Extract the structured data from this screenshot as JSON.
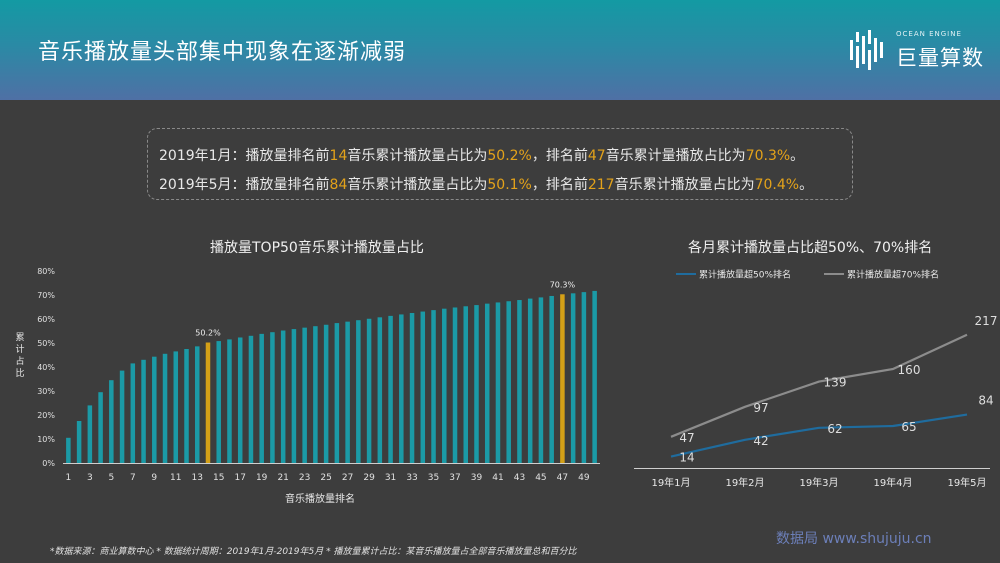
{
  "header": {
    "title": "音乐播放量头部集中现象在逐渐减弱"
  },
  "logo": {
    "text": "巨量算数",
    "subtext": "OCEAN ENGINE"
  },
  "summary": {
    "line1": {
      "a": "2019年1月：播放量排名前",
      "b": "14",
      "c": "音乐累计播放量占比为",
      "d": "50.2%",
      "e": "，排名前",
      "f": "47",
      "g": "音乐累计量播放占比为",
      "h": "70.3%",
      "i": "。"
    },
    "line2": {
      "a": "2019年5月：播放量排名前",
      "b": "84",
      "c": "音乐累计播放量占比为",
      "d": "50.1%",
      "e": "，排名前",
      "f": "217",
      "g": "音乐累计播放量占比为",
      "h": "70.4%",
      "i": "。"
    }
  },
  "colors": {
    "bar": "#1b9aa6",
    "highlight": "#d4a017",
    "line1": "#1f6c9e",
    "line2": "#8c8c8c",
    "axis": "#cfcfcf"
  },
  "chart_data": [
    {
      "type": "bar",
      "title": "播放量TOP50音乐累计播放量占比",
      "xlabel": "音乐播放量排名",
      "ylabel": "累计占比",
      "ylim": [
        0,
        80
      ],
      "yticks": [
        "0%",
        "10%",
        "20%",
        "30%",
        "40%",
        "50%",
        "60%",
        "70%",
        "80%"
      ],
      "xticks": [
        "1",
        "3",
        "5",
        "7",
        "9",
        "11",
        "13",
        "15",
        "17",
        "19",
        "21",
        "23",
        "25",
        "27",
        "29",
        "31",
        "33",
        "35",
        "37",
        "39",
        "41",
        "43",
        "45",
        "47",
        "49"
      ],
      "categories": [
        1,
        2,
        3,
        4,
        5,
        6,
        7,
        8,
        9,
        10,
        11,
        12,
        13,
        14,
        15,
        16,
        17,
        18,
        19,
        20,
        21,
        22,
        23,
        24,
        25,
        26,
        27,
        28,
        29,
        30,
        31,
        32,
        33,
        34,
        35,
        36,
        37,
        38,
        39,
        40,
        41,
        42,
        43,
        44,
        45,
        46,
        47,
        48,
        49,
        50
      ],
      "values": [
        10.5,
        17.5,
        24,
        29.5,
        34.5,
        38.5,
        41.5,
        43,
        44.3,
        45.5,
        46.5,
        47.5,
        48.6,
        50.2,
        50.8,
        51.5,
        52.3,
        53,
        53.8,
        54.5,
        55.2,
        55.8,
        56.4,
        57,
        57.6,
        58.3,
        58.9,
        59.5,
        60.1,
        60.7,
        61.3,
        61.9,
        62.5,
        63.1,
        63.7,
        64.3,
        64.8,
        65.3,
        65.8,
        66.4,
        66.9,
        67.4,
        67.9,
        68.5,
        69,
        69.6,
        70.3,
        70.7,
        71.2,
        71.7
      ],
      "highlights": [
        14,
        47
      ],
      "data_labels": [
        {
          "category": 14,
          "text": "50.2%"
        },
        {
          "category": 47,
          "text": "70.3%"
        }
      ]
    },
    {
      "type": "line",
      "title": "各月累计播放量占比超50%、70%排名",
      "categories": [
        "19年1月",
        "19年2月",
        "19年3月",
        "19年4月",
        "19年5月"
      ],
      "series": [
        {
          "name": "累计播放量超50%排名",
          "values": [
            14,
            42,
            62,
            65,
            84
          ]
        },
        {
          "name": "累计播放量超70%排名",
          "values": [
            47,
            97,
            139,
            160,
            217
          ]
        }
      ],
      "legend": "top"
    }
  ],
  "footnote": "*数据来源：商业算数中心 * 数据统计周期：2019年1月-2019年5月 * 播放量累计占比：某音乐播放量占全部音乐播放量总和百分比",
  "watermark": "数据局 www.shujuju.cn"
}
